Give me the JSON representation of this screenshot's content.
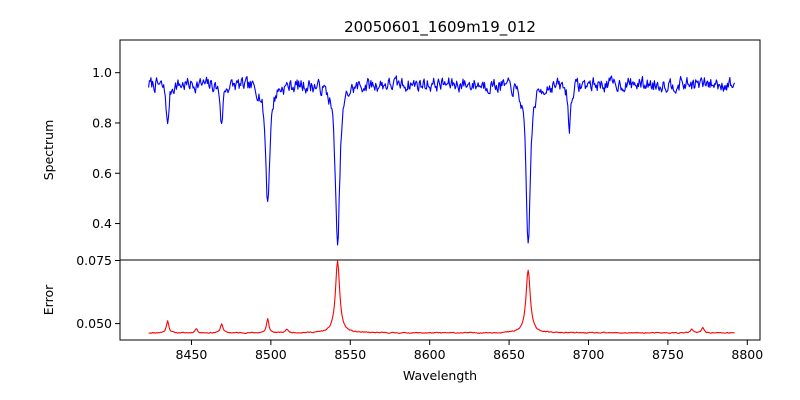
{
  "chart_data": {
    "type": "line",
    "title": "20050601_1609m19_012",
    "xlabel": "Wavelength",
    "xlim": [
      8405,
      8808
    ],
    "xticks": [
      8450,
      8500,
      8550,
      8600,
      8650,
      8700,
      8750,
      8800
    ],
    "xtick_labels": [
      "8450",
      "8500",
      "8550",
      "8600",
      "8650",
      "8700",
      "8750",
      "8800"
    ],
    "grid": false,
    "panels": [
      {
        "id": "spectrum",
        "ylabel": "Spectrum",
        "ylim": [
          0.255,
          1.13
        ],
        "yticks": [
          0.4,
          0.6,
          0.8,
          1.0
        ],
        "ytick_labels": [
          "0.4",
          "0.6",
          "0.8",
          "1.0"
        ],
        "series": [
          {
            "color": "#0000ff",
            "x_start": 8423,
            "x_end": 8792,
            "baseline": 0.955,
            "noise": 0.045,
            "seed": 7,
            "features": [
              {
                "x": 8498,
                "value": 0.49
              },
              {
                "x": 8542,
                "value": 0.29
              },
              {
                "x": 8662,
                "value": 0.31
              },
              {
                "x": 8435,
                "value": 0.78
              },
              {
                "x": 8469,
                "value": 0.79
              },
              {
                "x": 8688,
                "value": 0.77
              }
            ]
          }
        ]
      },
      {
        "id": "error",
        "ylabel": "Error",
        "ylim": [
          0.0435,
          0.0752
        ],
        "yticks": [
          0.05,
          0.075
        ],
        "ytick_labels": [
          "0.050",
          "0.075"
        ],
        "series": [
          {
            "color": "#ff0000",
            "x_start": 8423,
            "x_end": 8792,
            "baseline": 0.0463,
            "noise": 0.0003,
            "seed": 11,
            "features": [
              {
                "x": 8435,
                "value": 0.0512
              },
              {
                "x": 8469,
                "value": 0.05
              },
              {
                "x": 8498,
                "value": 0.0518
              },
              {
                "x": 8542,
                "value": 0.0748
              },
              {
                "x": 8662,
                "value": 0.0712
              },
              {
                "x": 8453,
                "value": 0.048
              },
              {
                "x": 8510,
                "value": 0.0478
              },
              {
                "x": 8765,
                "value": 0.0478
              },
              {
                "x": 8772,
                "value": 0.0485
              }
            ]
          }
        ]
      }
    ]
  }
}
